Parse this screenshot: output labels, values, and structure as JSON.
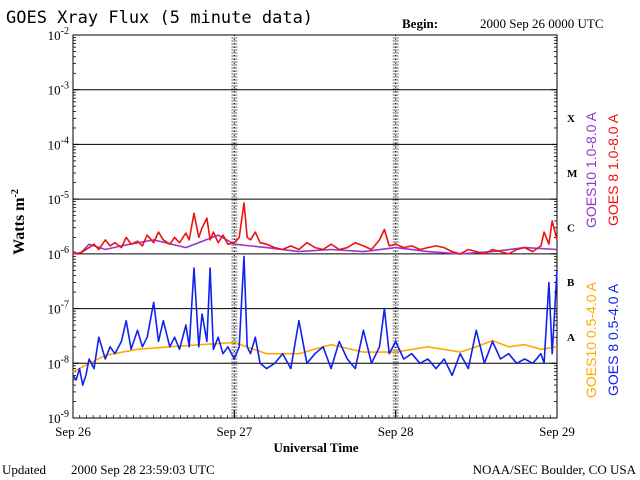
{
  "chart_data": {
    "type": "line",
    "title": "GOES Xray Flux (5 minute data)",
    "begin_label": "Begin:",
    "begin_value": "2000 Sep 26 0000 UTC",
    "ylabel": "Watts m",
    "ylabel_sup": "-2",
    "xlabel": "Universal Time",
    "y_scale": "log",
    "ylim": [
      1e-09,
      0.01
    ],
    "xlim": [
      0,
      3
    ],
    "x_ticks": [
      {
        "value": 0,
        "label": "Sep 26"
      },
      {
        "value": 1,
        "label": "Sep 27"
      },
      {
        "value": 2,
        "label": "Sep 28"
      },
      {
        "value": 3,
        "label": "Sep 29"
      }
    ],
    "y_ticks": [
      {
        "exp": -2,
        "label": "10",
        "sup": "-2"
      },
      {
        "exp": -3,
        "label": "10",
        "sup": "-3"
      },
      {
        "exp": -4,
        "label": "10",
        "sup": "-4"
      },
      {
        "exp": -5,
        "label": "10",
        "sup": "-5"
      },
      {
        "exp": -6,
        "label": "10",
        "sup": "-6"
      },
      {
        "exp": -7,
        "label": "10",
        "sup": "-7"
      },
      {
        "exp": -8,
        "label": "10",
        "sup": "-8"
      },
      {
        "exp": -9,
        "label": "10",
        "sup": "-9"
      }
    ],
    "grid": {
      "horizontal_exps": [
        -3,
        -4,
        -5,
        -6,
        -7,
        -8
      ]
    },
    "flare_classes": [
      {
        "label": "X",
        "exp": -3.5
      },
      {
        "label": "M",
        "exp": -4.5
      },
      {
        "label": "C",
        "exp": -5.5
      },
      {
        "label": "B",
        "exp": -6.5
      },
      {
        "label": "A",
        "exp": -7.5
      }
    ],
    "series": [
      {
        "name": "GOES10 1.0-8.0 A",
        "color": "#9933cc",
        "x": [
          0,
          0.05,
          0.1,
          0.2,
          0.3,
          0.5,
          0.7,
          0.9,
          1.0,
          1.2,
          1.4,
          1.6,
          1.8,
          2.0,
          2.2,
          2.4,
          2.6,
          2.8,
          3.0
        ],
        "y": [
          1e-06,
          1.05e-06,
          1.5e-06,
          1.2e-06,
          1.4e-06,
          1.8e-06,
          1.3e-06,
          2.2e-06,
          1.5e-06,
          1.3e-06,
          1.1e-06,
          1.2e-06,
          1.1e-06,
          1.3e-06,
          1.1e-06,
          1e-06,
          1.1e-06,
          1.3e-06,
          1.2e-06
        ]
      },
      {
        "name": "GOES 8 1.0-8.0 A",
        "color": "#ee1111",
        "x": [
          0,
          0.03,
          0.06,
          0.1,
          0.13,
          0.16,
          0.2,
          0.23,
          0.26,
          0.3,
          0.33,
          0.36,
          0.4,
          0.43,
          0.46,
          0.5,
          0.53,
          0.56,
          0.6,
          0.63,
          0.66,
          0.7,
          0.72,
          0.75,
          0.78,
          0.8,
          0.83,
          0.85,
          0.87,
          0.9,
          0.93,
          0.96,
          1.0,
          1.03,
          1.06,
          1.08,
          1.1,
          1.13,
          1.16,
          1.2,
          1.25,
          1.3,
          1.35,
          1.4,
          1.45,
          1.5,
          1.55,
          1.6,
          1.65,
          1.7,
          1.75,
          1.8,
          1.85,
          1.9,
          1.93,
          1.96,
          2.0,
          2.05,
          2.1,
          2.15,
          2.2,
          2.25,
          2.3,
          2.35,
          2.4,
          2.45,
          2.5,
          2.55,
          2.6,
          2.65,
          2.7,
          2.75,
          2.8,
          2.85,
          2.9,
          2.92,
          2.95,
          2.97,
          3.0
        ],
        "y": [
          1.1e-06,
          1e-06,
          1.1e-06,
          1.3e-06,
          1.5e-06,
          1.2e-06,
          1.8e-06,
          1.4e-06,
          1.6e-06,
          1.3e-06,
          2e-06,
          1.5e-06,
          1.7e-06,
          1.4e-06,
          2.2e-06,
          1.6e-06,
          2.5e-06,
          1.8e-06,
          1.5e-06,
          2e-06,
          1.6e-06,
          2.4e-06,
          1.8e-06,
          5.5e-06,
          2e-06,
          3e-06,
          4.5e-06,
          1.8e-06,
          2.5e-06,
          1.6e-06,
          2.2e-06,
          1.5e-06,
          1.6e-06,
          2e-06,
          8.5e-06,
          2e-06,
          1.8e-06,
          2.5e-06,
          1.6e-06,
          1.5e-06,
          1.3e-06,
          1.2e-06,
          1.4e-06,
          1.2e-06,
          1.6e-06,
          1.3e-06,
          1.2e-06,
          1.5e-06,
          1.2e-06,
          1.3e-06,
          1.6e-06,
          1.4e-06,
          1.2e-06,
          1.8e-06,
          2.8e-06,
          1.4e-06,
          1.5e-06,
          1.3e-06,
          1.4e-06,
          1.2e-06,
          1.3e-06,
          1.4e-06,
          1.3e-06,
          1.1e-06,
          1e-06,
          1.2e-06,
          1.1e-06,
          1e-06,
          1.2e-06,
          1.1e-06,
          1e-06,
          1.2e-06,
          1.3e-06,
          1.1e-06,
          1.4e-06,
          2.5e-06,
          1.5e-06,
          4e-06,
          1.8e-06
        ]
      },
      {
        "name": "GOES10 0.5-4.0 A",
        "color": "#ffaa00",
        "x": [
          0,
          0.2,
          0.4,
          0.6,
          0.8,
          1.0,
          1.2,
          1.4,
          1.6,
          1.8,
          2.0,
          2.2,
          2.4,
          2.5,
          2.6,
          2.7,
          2.8,
          2.9,
          3.0
        ],
        "y": [
          7e-09,
          1.4e-08,
          1.8e-08,
          2e-08,
          2.2e-08,
          2.4e-08,
          1.5e-08,
          1.5e-08,
          2.2e-08,
          1.6e-08,
          1.6e-08,
          2e-08,
          1.6e-08,
          2e-08,
          2.6e-08,
          2e-08,
          2.2e-08,
          1.8e-08,
          2e-08
        ]
      },
      {
        "name": "GOES 8 0.5-4.0 A",
        "color": "#1122ee",
        "x": [
          0,
          0.02,
          0.04,
          0.06,
          0.08,
          0.1,
          0.13,
          0.16,
          0.2,
          0.23,
          0.26,
          0.3,
          0.33,
          0.36,
          0.4,
          0.43,
          0.46,
          0.5,
          0.53,
          0.56,
          0.6,
          0.63,
          0.66,
          0.7,
          0.72,
          0.75,
          0.78,
          0.8,
          0.83,
          0.85,
          0.87,
          0.9,
          0.93,
          0.96,
          1.0,
          1.03,
          1.06,
          1.08,
          1.1,
          1.13,
          1.16,
          1.2,
          1.25,
          1.3,
          1.35,
          1.4,
          1.45,
          1.5,
          1.55,
          1.6,
          1.65,
          1.7,
          1.75,
          1.8,
          1.85,
          1.9,
          1.93,
          1.96,
          2.0,
          2.05,
          2.1,
          2.15,
          2.2,
          2.25,
          2.3,
          2.35,
          2.4,
          2.45,
          2.5,
          2.55,
          2.6,
          2.65,
          2.7,
          2.75,
          2.8,
          2.85,
          2.9,
          2.92,
          2.95,
          2.97,
          3.0
        ],
        "y": [
          6e-09,
          5e-09,
          8e-09,
          4e-09,
          6e-09,
          1.2e-08,
          8e-09,
          3e-08,
          1.2e-08,
          2e-08,
          1.5e-08,
          2.5e-08,
          6e-08,
          1.8e-08,
          4e-08,
          2e-08,
          3e-08,
          1.3e-07,
          2.5e-08,
          6e-08,
          2e-08,
          3e-08,
          1.8e-08,
          5e-08,
          2e-08,
          5.5e-07,
          2e-08,
          8e-08,
          2.5e-08,
          5.5e-07,
          1.8e-08,
          3e-08,
          1.5e-08,
          2e-08,
          1.2e-08,
          2e-08,
          9e-07,
          2e-08,
          1.5e-08,
          3e-08,
          1e-08,
          8e-09,
          1e-08,
          1.5e-08,
          8e-09,
          6e-08,
          1e-08,
          1.5e-08,
          2e-08,
          8e-09,
          2.5e-08,
          1.2e-08,
          8e-09,
          4e-08,
          1e-08,
          2e-08,
          1e-07,
          1.5e-08,
          2.5e-08,
          1.2e-08,
          1.5e-08,
          1e-08,
          1.2e-08,
          8e-09,
          1.2e-08,
          6e-09,
          1.5e-08,
          8e-09,
          4e-08,
          1e-08,
          2.5e-08,
          1.2e-08,
          1.5e-08,
          1e-08,
          1.2e-08,
          1e-08,
          1.5e-08,
          1e-08,
          3e-07,
          1.5e-08,
          5e-07
        ]
      }
    ]
  },
  "footer": {
    "updated_label": "Updated",
    "updated_value": "2000 Sep 28 23:59:03 UTC",
    "credit": "NOAA/SEC Boulder, CO USA"
  },
  "legend": {
    "groups": [
      {
        "items": [
          "GOES10 1.0-8.0 A",
          "GOES 8 1.0-8.0 A"
        ]
      },
      {
        "items": [
          "GOES10 0.5-4.0 A",
          "GOES 8 0.5-4.0 A"
        ]
      }
    ]
  }
}
